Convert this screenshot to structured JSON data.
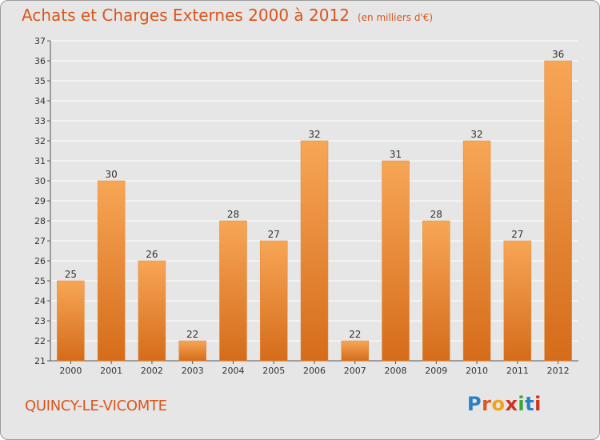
{
  "header": {
    "title": "Achats et Charges Externes 2000 à 2012",
    "subtitle": "(en milliers d'€)"
  },
  "footer": {
    "commune": "QUINCY-LE-VICOMTE",
    "logo_text": "Proxiti"
  },
  "colors": {
    "accent": "#d9561e",
    "bar_top": "#f7a656",
    "bar_bottom": "#d56c1a",
    "background": "#e6e6e6",
    "gridline": "#ffffff"
  },
  "chart_data": {
    "type": "bar",
    "title": "Achats et Charges Externes 2000 à 2012",
    "subtitle": "(en milliers d'€)",
    "xlabel": "",
    "ylabel": "",
    "categories": [
      "2000",
      "2001",
      "2002",
      "2003",
      "2004",
      "2005",
      "2006",
      "2007",
      "2008",
      "2009",
      "2010",
      "2011",
      "2012"
    ],
    "values": [
      25,
      30,
      26,
      22,
      28,
      27,
      32,
      22,
      31,
      28,
      32,
      27,
      36
    ],
    "ylim": [
      21,
      37
    ],
    "yticks": [
      21,
      22,
      23,
      24,
      25,
      26,
      27,
      28,
      29,
      30,
      31,
      32,
      33,
      34,
      35,
      36,
      37
    ],
    "grid": true,
    "data_labels": true
  }
}
